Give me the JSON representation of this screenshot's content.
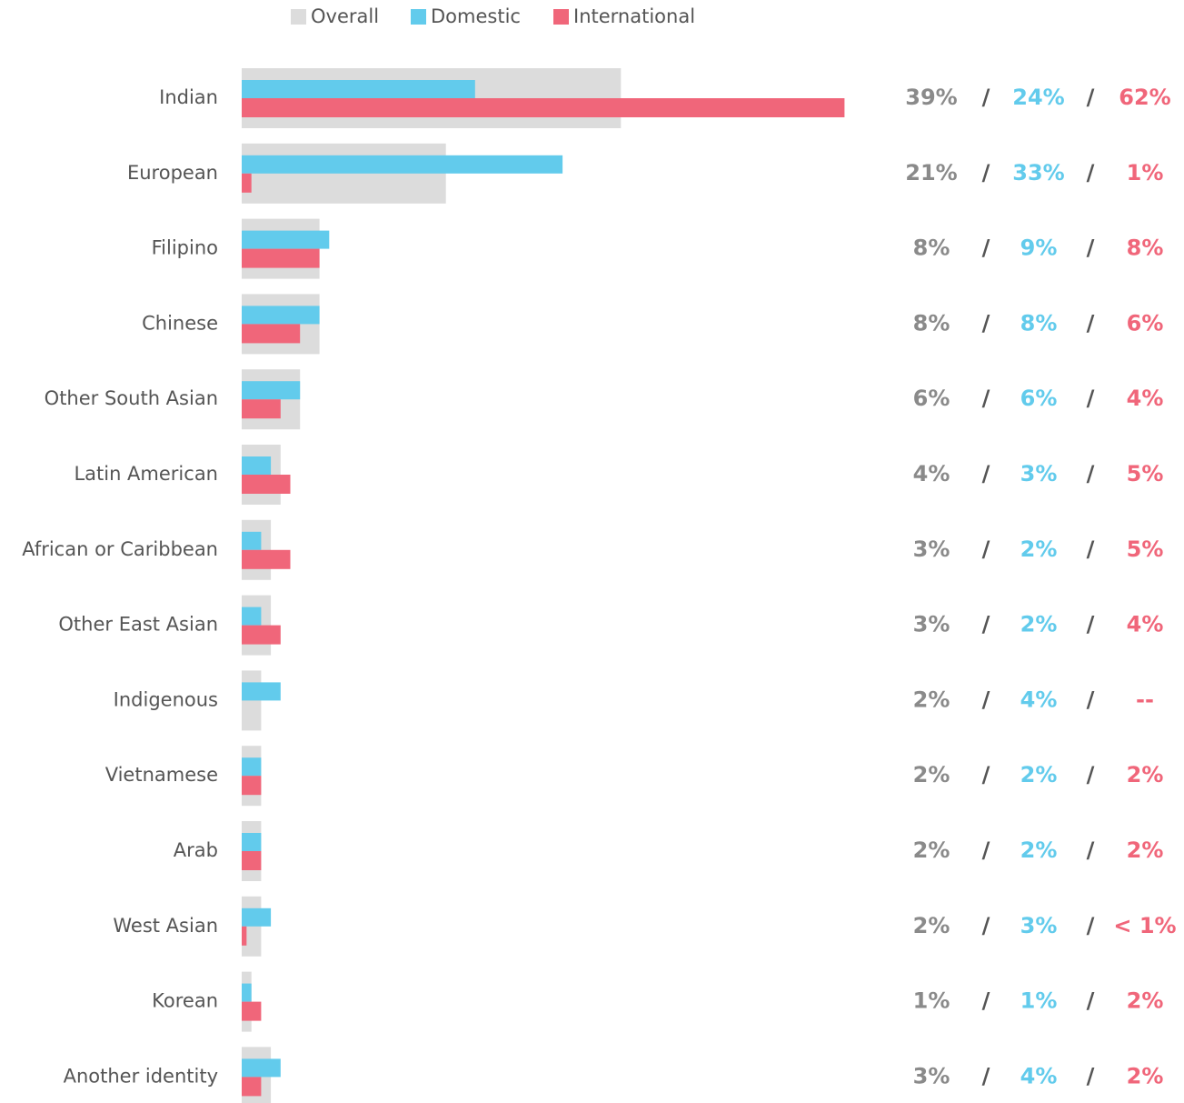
{
  "chart_data": {
    "type": "bar",
    "categories": [
      "Indian",
      "European",
      "Filipino",
      "Chinese",
      "Other South Asian",
      "Latin American",
      "African or Caribbean",
      "Other East Asian",
      "Indigenous",
      "Vietnamese",
      "Arab",
      "West Asian",
      "Korean",
      "Another identity"
    ],
    "separator": "/",
    "series": [
      {
        "name": "Overall",
        "color": "#dcdcdc",
        "label_color": "#8a8a8a",
        "values": [
          39,
          21,
          8,
          8,
          6,
          4,
          3,
          3,
          2,
          2,
          2,
          2,
          1,
          3
        ],
        "value_labels": [
          "39%",
          "21%",
          "8%",
          "8%",
          "6%",
          "4%",
          "3%",
          "3%",
          "2%",
          "2%",
          "2%",
          "2%",
          "1%",
          "3%"
        ]
      },
      {
        "name": "Domestic",
        "color": "#62cbec",
        "label_color": "#62cbec",
        "values": [
          24,
          33,
          9,
          8,
          6,
          3,
          2,
          2,
          4,
          2,
          2,
          3,
          1,
          4
        ],
        "value_labels": [
          "24%",
          "33%",
          "9%",
          "8%",
          "6%",
          "3%",
          "2%",
          "2%",
          "4%",
          "2%",
          "2%",
          "3%",
          "1%",
          "4%"
        ]
      },
      {
        "name": "International",
        "color": "#f0667a",
        "label_color": "#f0667a",
        "values": [
          62,
          1,
          8,
          6,
          4,
          5,
          5,
          4,
          null,
          2,
          2,
          0.5,
          2,
          2
        ],
        "value_labels": [
          "62%",
          "1%",
          "8%",
          "6%",
          "4%",
          "5%",
          "5%",
          "4%",
          "--",
          "2%",
          "2%",
          "< 1%",
          "2%",
          "2%"
        ]
      }
    ]
  }
}
